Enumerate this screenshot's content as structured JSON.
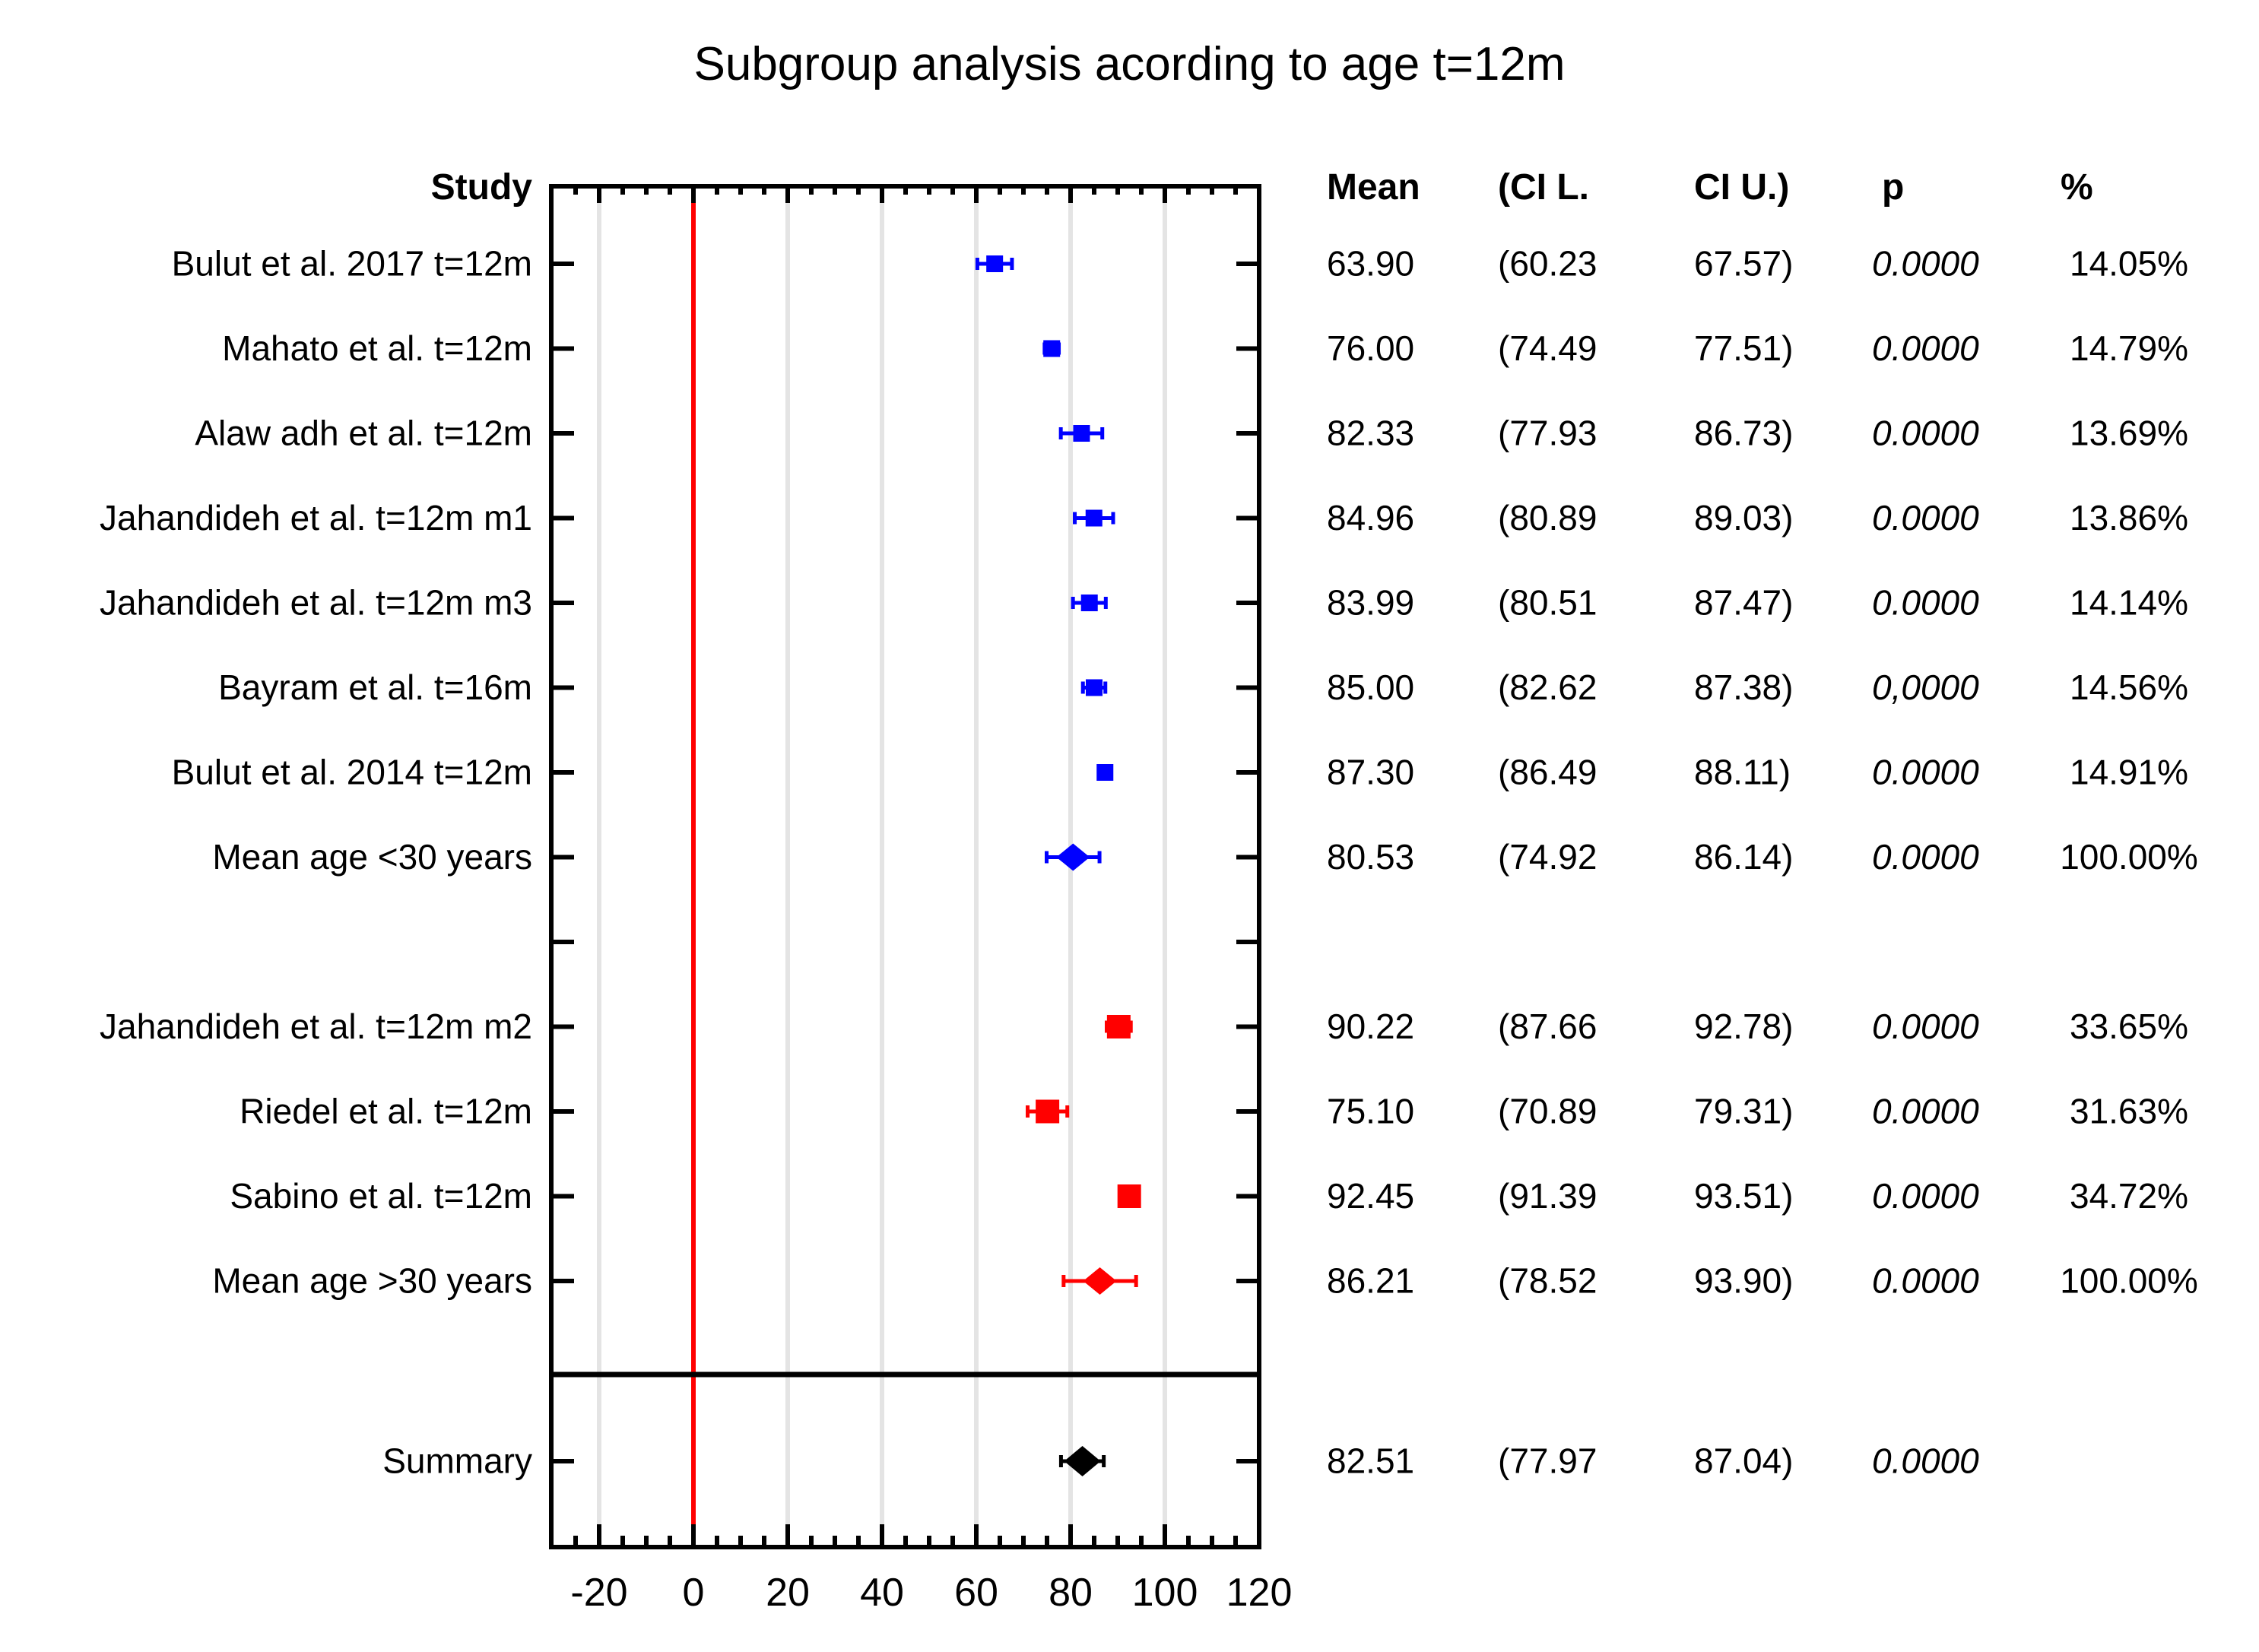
{
  "chart_data": {
    "type": "forest",
    "title": "Subgroup analysis acording to age t=12m",
    "column_headers": {
      "study": "Study",
      "mean": "Mean",
      "ci_lower": "(CI L.",
      "ci_upper": "CI U.)",
      "p": "p",
      "weight": "%"
    },
    "x_axis": {
      "tick_values": [
        -20,
        0,
        20,
        40,
        60,
        80,
        100,
        120
      ],
      "tick_labels": [
        "-20",
        "0",
        "20",
        "40",
        "60",
        "80",
        "100",
        "120"
      ],
      "minor_step": 5,
      "range": [
        -30,
        120
      ],
      "zero_line_value": 0
    },
    "colors": {
      "group_age_lt30": "#0000ff",
      "group_age_gt30": "#ff0000",
      "summary": "#000000",
      "zero_line": "#ff0000",
      "gridline": "#e4e4e4",
      "frame": "#000000"
    },
    "rows": [
      {
        "slot": 0,
        "type": "study",
        "marker": "square",
        "color": "#0000ff",
        "label": "Bulut et al. 2017 t=12m",
        "mean": 63.9,
        "ci_lower": 60.23,
        "ci_upper": 67.57,
        "mean_text": "63.90",
        "ci_lower_text": "(60.23",
        "ci_upper_text": "67.57)",
        "p_text": "0.0000",
        "weight_text": "14.05%"
      },
      {
        "slot": 1,
        "type": "study",
        "marker": "square",
        "color": "#0000ff",
        "label": "Mahato et al. t=12m",
        "mean": 76.0,
        "ci_lower": 74.49,
        "ci_upper": 77.51,
        "mean_text": "76.00",
        "ci_lower_text": "(74.49",
        "ci_upper_text": "77.51)",
        "p_text": "0.0000",
        "weight_text": "14.79%"
      },
      {
        "slot": 2,
        "type": "study",
        "marker": "square",
        "color": "#0000ff",
        "label": "Alaw adh et al. t=12m",
        "mean": 82.33,
        "ci_lower": 77.93,
        "ci_upper": 86.73,
        "mean_text": "82.33",
        "ci_lower_text": "(77.93",
        "ci_upper_text": "86.73)",
        "p_text": "0.0000",
        "weight_text": "13.69%"
      },
      {
        "slot": 3,
        "type": "study",
        "marker": "square",
        "color": "#0000ff",
        "label": "Jahandideh et al. t=12m m1",
        "mean": 84.96,
        "ci_lower": 80.89,
        "ci_upper": 89.03,
        "mean_text": "84.96",
        "ci_lower_text": "(80.89",
        "ci_upper_text": "89.03)",
        "p_text": "0.0000",
        "weight_text": "13.86%"
      },
      {
        "slot": 4,
        "type": "study",
        "marker": "square",
        "color": "#0000ff",
        "label": "Jahandideh et al. t=12m m3",
        "mean": 83.99,
        "ci_lower": 80.51,
        "ci_upper": 87.47,
        "mean_text": "83.99",
        "ci_lower_text": "(80.51",
        "ci_upper_text": "87.47)",
        "p_text": "0.0000",
        "weight_text": "14.14%"
      },
      {
        "slot": 5,
        "type": "study",
        "marker": "square",
        "color": "#0000ff",
        "label": "Bayram et al. t=16m",
        "mean": 85.0,
        "ci_lower": 82.62,
        "ci_upper": 87.38,
        "mean_text": "85.00",
        "ci_lower_text": "(82.62",
        "ci_upper_text": "87.38)",
        "p_text": "0,0000",
        "weight_text": "14.56%"
      },
      {
        "slot": 6,
        "type": "study",
        "marker": "square",
        "color": "#0000ff",
        "label": "Bulut et al. 2014 t=12m",
        "mean": 87.3,
        "ci_lower": 86.49,
        "ci_upper": 88.11,
        "mean_text": "87.30",
        "ci_lower_text": "(86.49",
        "ci_upper_text": "88.11)",
        "p_text": "0.0000",
        "weight_text": "14.91%"
      },
      {
        "slot": 7,
        "type": "subtotal",
        "marker": "diamond",
        "color": "#0000ff",
        "label": "Mean age <30 years",
        "mean": 80.53,
        "ci_lower": 74.92,
        "ci_upper": 86.14,
        "mean_text": "80.53",
        "ci_lower_text": "(74.92",
        "ci_upper_text": "86.14)",
        "p_text": "0.0000",
        "weight_text": "100.00%"
      },
      {
        "slot": 8,
        "type": "spacer"
      },
      {
        "slot": 9,
        "type": "study",
        "marker": "square",
        "color": "#ff0000",
        "label": "Jahandideh et al. t=12m m2",
        "mean": 90.22,
        "ci_lower": 87.66,
        "ci_upper": 92.78,
        "mean_text": "90.22",
        "ci_lower_text": "(87.66",
        "ci_upper_text": "92.78)",
        "p_text": "0.0000",
        "weight_text": "33.65%"
      },
      {
        "slot": 10,
        "type": "study",
        "marker": "square",
        "color": "#ff0000",
        "label": "Riedel et al. t=12m",
        "mean": 75.1,
        "ci_lower": 70.89,
        "ci_upper": 79.31,
        "mean_text": "75.10",
        "ci_lower_text": "(70.89",
        "ci_upper_text": "79.31)",
        "p_text": "0.0000",
        "weight_text": "31.63%"
      },
      {
        "slot": 11,
        "type": "study",
        "marker": "square",
        "color": "#ff0000",
        "label": "Sabino et al. t=12m",
        "mean": 92.45,
        "ci_lower": 91.39,
        "ci_upper": 93.51,
        "mean_text": "92.45",
        "ci_lower_text": "(91.39",
        "ci_upper_text": "93.51)",
        "p_text": "0.0000",
        "weight_text": "34.72%"
      },
      {
        "slot": 12,
        "type": "subtotal",
        "marker": "diamond",
        "color": "#ff0000",
        "label": "Mean age >30 years",
        "mean": 86.21,
        "ci_lower": 78.52,
        "ci_upper": 93.9,
        "mean_text": "86.21",
        "ci_lower_text": "(78.52",
        "ci_upper_text": "93.90)",
        "p_text": "0.0000",
        "weight_text": "100.00%"
      },
      {
        "slot": 13,
        "type": "separator"
      },
      {
        "slot": 14,
        "type": "summary",
        "marker": "diamond",
        "color": "#000000",
        "label": "Summary",
        "mean": 82.51,
        "ci_lower": 77.97,
        "ci_upper": 87.04,
        "mean_text": "82.51",
        "ci_lower_text": "(77.97",
        "ci_upper_text": "87.04)",
        "p_text": "0.0000",
        "weight_text": ""
      }
    ]
  }
}
